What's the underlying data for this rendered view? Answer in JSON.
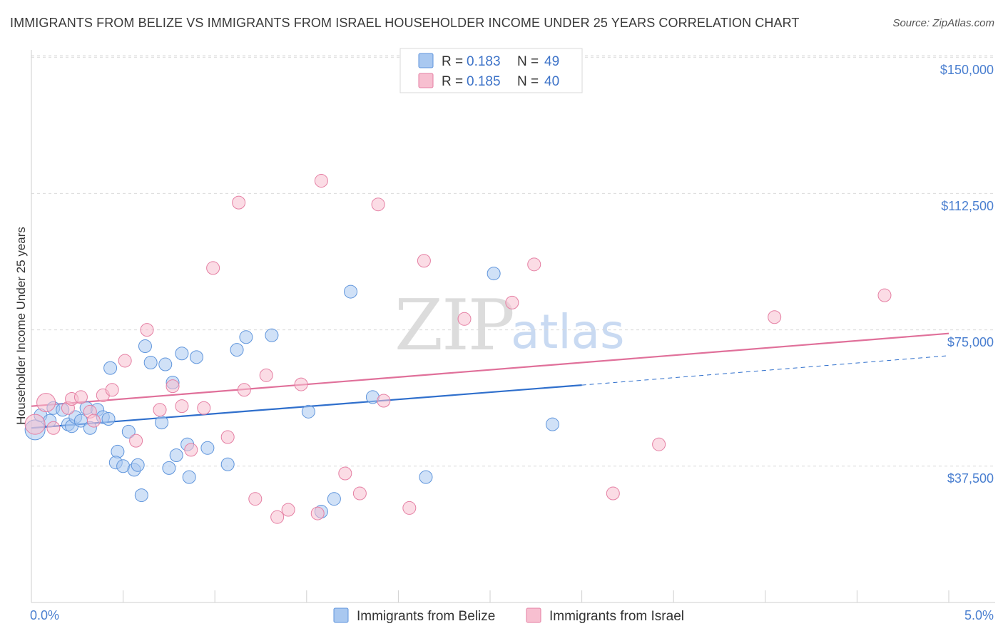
{
  "header": {
    "title": "IMMIGRANTS FROM BELIZE VS IMMIGRANTS FROM ISRAEL HOUSEHOLDER INCOME UNDER 25 YEARS CORRELATION CHART",
    "source": "Source: ZipAtlas.com"
  },
  "watermark": {
    "zip": "ZIP",
    "atlas": "atlas"
  },
  "colors": {
    "belize_fill": "#a9c8f0",
    "belize_stroke": "#5f95dc",
    "belize_line": "#2f6fcc",
    "israel_fill": "#f7bfd0",
    "israel_stroke": "#e57fa3",
    "israel_line": "#e0709a",
    "grid": "#d9d9d9",
    "tick_text": "#4a7fd0"
  },
  "legend": {
    "rows": [
      {
        "r_label": "R =",
        "r_value": "0.183",
        "n_label": "N =",
        "n_value": "49"
      },
      {
        "r_label": "R =",
        "r_value": "0.185",
        "n_label": "N =",
        "n_value": "40"
      }
    ]
  },
  "chart_data": {
    "type": "scatter",
    "title": "IMMIGRANTS FROM BELIZE VS IMMIGRANTS FROM ISRAEL HOUSEHOLDER INCOME UNDER 25 YEARS CORRELATION CHART",
    "xlabel": "",
    "ylabel": "Householder Income Under 25 years",
    "xlim": [
      0,
      5
    ],
    "ylim": [
      0,
      152000
    ],
    "x_tick_labels": [
      "0.0%",
      "5.0%"
    ],
    "y_tick_values": [
      37500,
      75000,
      112500,
      150000
    ],
    "y_tick_labels": [
      "$37,500",
      "$75,000",
      "$112,500",
      "$150,000"
    ],
    "series": [
      {
        "name": "Immigrants from Belize",
        "r": 0.183,
        "n": 49,
        "trend": {
          "x0": 0.0,
          "y0": 48000,
          "x1": 3.0,
          "y1": 59800,
          "dash_x1": 5.0,
          "dash_y1": 67900
        },
        "points": [
          [
            0.02,
            47500,
            14
          ],
          [
            0.05,
            51500,
            9
          ],
          [
            0.1,
            50000,
            9
          ],
          [
            0.12,
            53500,
            9
          ],
          [
            0.17,
            53000,
            9
          ],
          [
            0.2,
            49000,
            9
          ],
          [
            0.22,
            48500,
            9
          ],
          [
            0.24,
            51000,
            9
          ],
          [
            0.27,
            50000,
            9
          ],
          [
            0.3,
            53500,
            9
          ],
          [
            0.32,
            48000,
            9
          ],
          [
            0.36,
            53000,
            9
          ],
          [
            0.39,
            51000,
            9
          ],
          [
            0.42,
            50500,
            9
          ],
          [
            0.43,
            64500,
            9
          ],
          [
            0.47,
            41500,
            9
          ],
          [
            0.46,
            38500,
            9
          ],
          [
            0.5,
            37500,
            9
          ],
          [
            0.53,
            47000,
            9
          ],
          [
            0.56,
            36500,
            9
          ],
          [
            0.58,
            37800,
            9
          ],
          [
            0.6,
            29500,
            9
          ],
          [
            0.62,
            70500,
            9
          ],
          [
            0.65,
            66000,
            9
          ],
          [
            0.71,
            49500,
            9
          ],
          [
            0.73,
            65500,
            9
          ],
          [
            0.75,
            37000,
            9
          ],
          [
            0.77,
            60500,
            9
          ],
          [
            0.79,
            40500,
            9
          ],
          [
            0.82,
            68500,
            9
          ],
          [
            0.85,
            43500,
            9
          ],
          [
            0.86,
            34500,
            9
          ],
          [
            0.9,
            67500,
            9
          ],
          [
            0.96,
            42500,
            9
          ],
          [
            1.07,
            38000,
            9
          ],
          [
            1.12,
            69500,
            9
          ],
          [
            1.17,
            73000,
            9
          ],
          [
            1.31,
            73500,
            9
          ],
          [
            1.51,
            52500,
            9
          ],
          [
            1.58,
            25000,
            9
          ],
          [
            1.65,
            28500,
            9
          ],
          [
            1.74,
            85500,
            9
          ],
          [
            1.86,
            56500,
            9
          ],
          [
            2.15,
            34500,
            9
          ],
          [
            2.52,
            90500,
            9
          ],
          [
            2.84,
            49000,
            9
          ]
        ]
      },
      {
        "name": "Immigrants from Israel",
        "r": 0.185,
        "n": 40,
        "trend": {
          "x0": 0.0,
          "y0": 54000,
          "x1": 5.0,
          "y1": 74000
        },
        "points": [
          [
            0.02,
            49000,
            14
          ],
          [
            0.08,
            55000,
            13
          ],
          [
            0.12,
            48000,
            9
          ],
          [
            0.2,
            53500,
            9
          ],
          [
            0.22,
            56000,
            9
          ],
          [
            0.27,
            56500,
            9
          ],
          [
            0.32,
            52500,
            9
          ],
          [
            0.34,
            50000,
            9
          ],
          [
            0.39,
            57000,
            9
          ],
          [
            0.44,
            58500,
            9
          ],
          [
            0.51,
            66500,
            9
          ],
          [
            0.57,
            44500,
            9
          ],
          [
            0.63,
            75000,
            9
          ],
          [
            0.7,
            53000,
            9
          ],
          [
            0.77,
            59500,
            9
          ],
          [
            0.82,
            54000,
            9
          ],
          [
            0.87,
            42000,
            9
          ],
          [
            0.94,
            53500,
            9
          ],
          [
            0.99,
            92000,
            9
          ],
          [
            1.07,
            45500,
            9
          ],
          [
            1.13,
            110000,
            9
          ],
          [
            1.16,
            58500,
            9
          ],
          [
            1.22,
            28500,
            9
          ],
          [
            1.28,
            62500,
            9
          ],
          [
            1.34,
            23500,
            9
          ],
          [
            1.4,
            25500,
            9
          ],
          [
            1.47,
            60000,
            9
          ],
          [
            1.56,
            24500,
            9
          ],
          [
            1.58,
            116000,
            9
          ],
          [
            1.71,
            35500,
            9
          ],
          [
            1.79,
            30000,
            9
          ],
          [
            1.89,
            109500,
            9
          ],
          [
            1.92,
            55500,
            9
          ],
          [
            2.06,
            26000,
            9
          ],
          [
            2.14,
            94000,
            9
          ],
          [
            2.36,
            78000,
            9
          ],
          [
            2.62,
            82500,
            9
          ],
          [
            2.74,
            93000,
            9
          ],
          [
            3.17,
            30000,
            9
          ],
          [
            3.42,
            43500,
            9
          ],
          [
            4.05,
            78500,
            9
          ],
          [
            4.65,
            84500,
            9
          ]
        ]
      }
    ]
  }
}
